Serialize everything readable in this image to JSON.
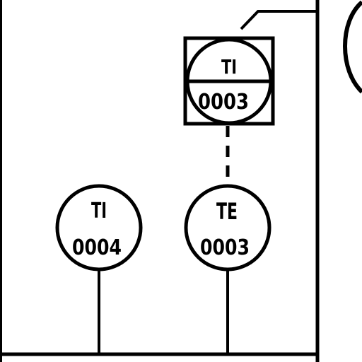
{
  "diagram": {
    "type": "P&ID instrument detail",
    "instruments": [
      {
        "id": "TI-0003",
        "kind": "shared display / control (square with circle)",
        "function": "TI",
        "number": "0003"
      },
      {
        "id": "TE-0003",
        "kind": "field instrument bubble",
        "function": "TE",
        "number": "0003"
      },
      {
        "id": "TI-0004",
        "kind": "field instrument bubble",
        "function": "TI",
        "number": "0004"
      }
    ],
    "connections": [
      {
        "from": "TE-0003",
        "to": "TI-0003",
        "style": "dashed (electrical signal)"
      },
      {
        "from": "TI-0004",
        "to": "process-line",
        "style": "solid"
      },
      {
        "from": "TE-0003",
        "to": "process-line",
        "style": "solid"
      }
    ],
    "colors": {
      "line": "#000000",
      "background": "#ffffff"
    }
  }
}
